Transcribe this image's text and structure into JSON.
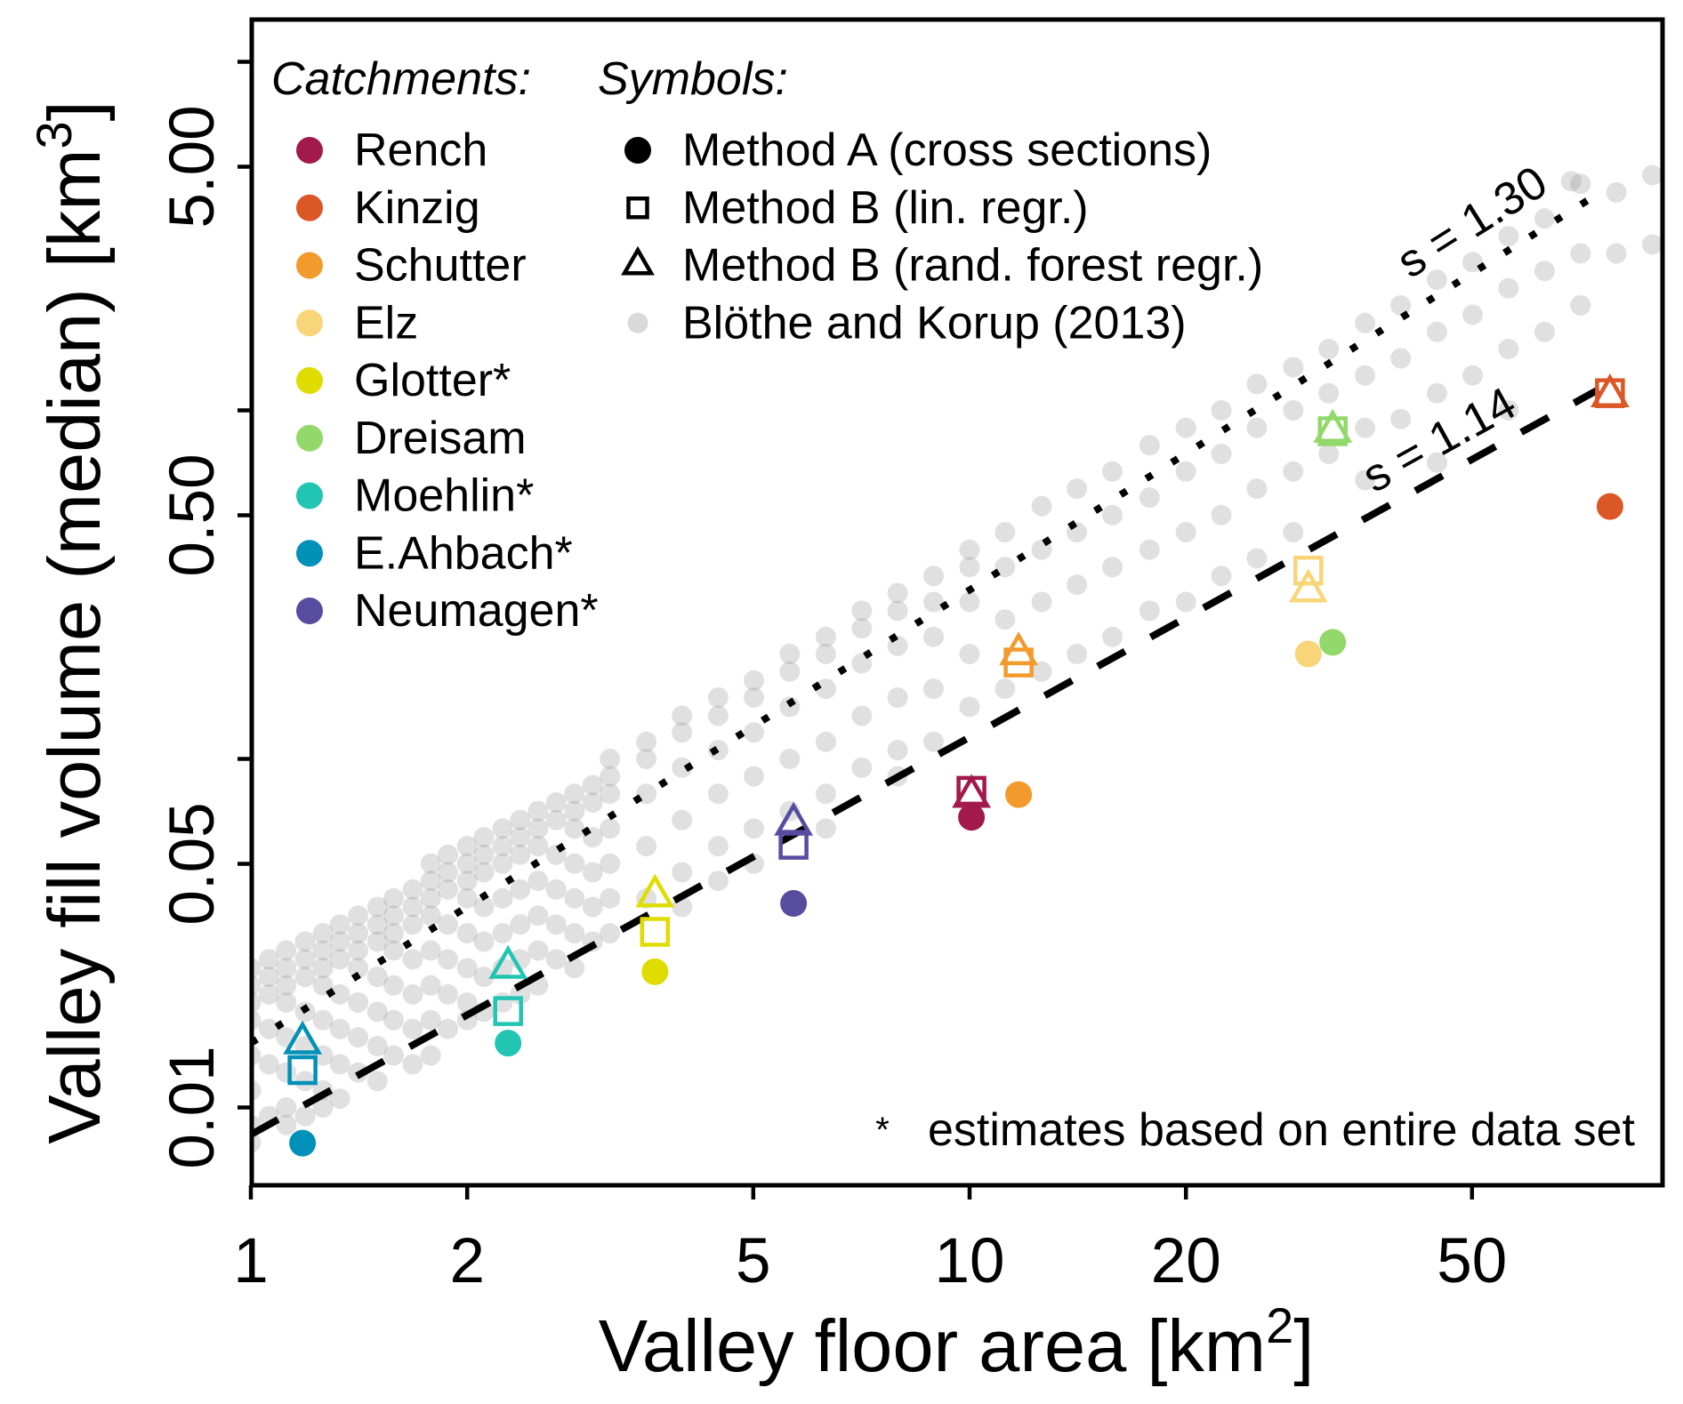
{
  "chart_data": {
    "type": "scatter",
    "title": "",
    "log_axes": true,
    "xlabel": {
      "main": "Valley floor area [km",
      "sup": "2",
      "end": "]"
    },
    "ylabel": {
      "main": "Valley fill volume (median) [km",
      "sup": "3",
      "end": "]"
    },
    "x_axis": {
      "range": [
        1,
        92
      ],
      "ticks": [
        {
          "value": 1,
          "label": "1"
        },
        {
          "value": 2,
          "label": "2"
        },
        {
          "value": 5,
          "label": "5"
        },
        {
          "value": 10,
          "label": "10"
        },
        {
          "value": 20,
          "label": "20"
        },
        {
          "value": 50,
          "label": "50"
        }
      ]
    },
    "y_axis": {
      "range": [
        0.006,
        13.2
      ],
      "ticks": [
        0.01,
        0.05,
        0.1,
        0.5,
        1,
        5,
        10
      ],
      "labeled_ticks": [
        {
          "value": 0.01,
          "label": "0.01"
        },
        {
          "value": 0.05,
          "label": "0.05"
        },
        {
          "value": 0.5,
          "label": "0.50"
        },
        {
          "value": 5,
          "label": "5.00"
        }
      ]
    },
    "grid": false,
    "legend": {
      "placement": "top-left",
      "catchments_title": "Catchments:",
      "symbols_title": "Symbols:",
      "symbols": [
        {
          "icon": "filled-circle-icon",
          "label": "Method A (cross sections)"
        },
        {
          "icon": "open-square-icon",
          "label": "Method B (lin. regr.)"
        },
        {
          "icon": "open-triangle-icon",
          "label": "Method B (rand. forest regr.)"
        },
        {
          "icon": "gray-circle-icon"
        }
      ]
    },
    "catchments": [
      {
        "label": "Rench",
        "color": "#A21A4A",
        "x": 10.06,
        "method_a": 0.068,
        "method_b_lin": 0.081,
        "method_b_rf": 0.078
      },
      {
        "label": "Kinzig",
        "color": "#DC5726",
        "x": 77.8,
        "method_a": 0.53,
        "method_b_lin": 1.12,
        "method_b_rf": 1.1
      },
      {
        "label": "Schutter",
        "color": "#F29B2C",
        "x": 11.7,
        "method_a": 0.079,
        "method_b_lin": 0.189,
        "method_b_rf": 0.2
      },
      {
        "label": "Elz",
        "color": "#F9D57A",
        "x": 29.6,
        "method_a": 0.2,
        "method_b_lin": 0.347,
        "method_b_rf": 0.303
      },
      {
        "label": "Glotter*",
        "color": "#E0DC00",
        "x": 3.65,
        "method_a": 0.0245,
        "method_b_lin": 0.0319,
        "method_b_rf": 0.0404
      },
      {
        "label": "Dreisam",
        "color": "#92D86A",
        "x": 32.0,
        "method_a": 0.216,
        "method_b_lin": 0.871,
        "method_b_rf": 0.87
      },
      {
        "label": "Moehlin*",
        "color": "#22C4B2",
        "x": 2.28,
        "method_a": 0.0153,
        "method_b_lin": 0.0189,
        "method_b_rf": 0.0252
      },
      {
        "label": "E.Ahbach*",
        "color": "#0090B8",
        "x": 1.18,
        "method_a": 0.0079,
        "method_b_lin": 0.0128,
        "method_b_rf": 0.0153
      },
      {
        "label": "Neumagen*",
        "color": "#574CA0",
        "x": 5.69,
        "method_a": 0.0385,
        "method_b_lin": 0.0567,
        "method_b_rf": 0.0649
      }
    ],
    "regression_lines": [
      {
        "label": "s = 1.30",
        "slope": 1.3,
        "intercept": 0.0153,
        "x_range": [
          1,
          75
        ]
      },
      {
        "label": "s = 1.14",
        "slope": 1.14,
        "intercept": 0.00836,
        "x_range": [
          1,
          75
        ]
      }
    ],
    "footnote": {
      "symbol": "*",
      "text": "estimates based on entire data set"
    },
    "reference_data": {
      "name": "Blöthe and Korup (2013)",
      "color": "#8C8C8C",
      "points": [
        {
          "x": 1.0,
          "y": [
            0.0251,
            0.0224,
            0.02,
            0.0178,
            0.0141,
            0.0112,
            0.00891,
            0.00794
          ]
        },
        {
          "x": 1.06,
          "y": [
            0.0266,
            0.0237,
            0.0211,
            0.0168,
            0.0133,
            0.00944
          ]
        },
        {
          "x": 1.12,
          "y": [
            0.0282,
            0.0251,
            0.0224,
            0.02,
            0.0159,
            0.0126,
            0.01,
            0.00891
          ]
        },
        {
          "x": 1.19,
          "y": [
            0.0299,
            0.0266,
            0.0237,
            0.0188,
            0.015,
            0.0119,
            0.00944
          ]
        },
        {
          "x": 1.26,
          "y": [
            0.0316,
            0.0282,
            0.0251,
            0.0224,
            0.0178,
            0.0141,
            0.0112,
            0.01
          ]
        },
        {
          "x": 1.33,
          "y": [
            0.0335,
            0.0299,
            0.0266,
            0.0211,
            0.0168,
            0.0133,
            0.0106
          ]
        },
        {
          "x": 1.41,
          "y": [
            0.0355,
            0.0316,
            0.0282,
            0.0251,
            0.02,
            0.0159,
            0.0126
          ]
        },
        {
          "x": 1.5,
          "y": [
            0.0376,
            0.0335,
            0.0299,
            0.0237,
            0.0188,
            0.015,
            0.0119
          ]
        },
        {
          "x": 1.58,
          "y": [
            0.0398,
            0.0355,
            0.0316,
            0.0282,
            0.0224,
            0.0178,
            0.0141
          ]
        },
        {
          "x": 1.68,
          "y": [
            0.0422,
            0.0376,
            0.0335,
            0.0266,
            0.0211,
            0.0168,
            0.0133
          ]
        },
        {
          "x": 1.78,
          "y": [
            0.0501,
            0.0447,
            0.0398,
            0.0355,
            0.0282,
            0.0224,
            0.0178,
            0.0141
          ]
        },
        {
          "x": 1.88,
          "y": [
            0.0531,
            0.0473,
            0.0422,
            0.0335,
            0.0266,
            0.0211,
            0.0168
          ]
        },
        {
          "x": 2.0,
          "y": [
            0.0562,
            0.0501,
            0.0447,
            0.0398,
            0.0316,
            0.0251,
            0.02,
            0.0178
          ]
        },
        {
          "x": 2.11,
          "y": [
            0.0596,
            0.0531,
            0.0473,
            0.0376,
            0.0299,
            0.0237,
            0.0188
          ]
        },
        {
          "x": 2.24,
          "y": [
            0.0631,
            0.0562,
            0.0501,
            0.0398,
            0.0316,
            0.0251,
            0.02
          ]
        },
        {
          "x": 2.37,
          "y": [
            0.0668,
            0.0596,
            0.0531,
            0.0422,
            0.0335,
            0.0266,
            0.0211
          ]
        },
        {
          "x": 2.51,
          "y": [
            0.0708,
            0.0631,
            0.0562,
            0.0447,
            0.0355,
            0.0282,
            0.0224
          ]
        },
        {
          "x": 2.66,
          "y": [
            0.075,
            0.0668,
            0.0531,
            0.0422,
            0.0335,
            0.0266
          ]
        },
        {
          "x": 2.82,
          "y": [
            0.0794,
            0.0708,
            0.0631,
            0.0501,
            0.0398,
            0.0316,
            0.0251
          ]
        },
        {
          "x": 2.99,
          "y": [
            0.0841,
            0.075,
            0.0596,
            0.0473,
            0.0376,
            0.0299
          ]
        },
        {
          "x": 3.16,
          "y": [
            0.1,
            0.0891,
            0.0794,
            0.0631,
            0.0501,
            0.0398,
            0.0316
          ]
        },
        {
          "x": 3.55,
          "y": [
            0.112,
            0.1,
            0.0794,
            0.0562,
            0.0398
          ]
        },
        {
          "x": 3.98,
          "y": [
            0.133,
            0.119,
            0.0944,
            0.0668,
            0.0473,
            0.0376
          ]
        },
        {
          "x": 4.47,
          "y": [
            0.15,
            0.133,
            0.106,
            0.0794,
            0.0562,
            0.0447
          ]
        },
        {
          "x": 5.01,
          "y": [
            0.168,
            0.15,
            0.119,
            0.0891,
            0.0631,
            0.0501
          ]
        },
        {
          "x": 5.62,
          "y": [
            0.2,
            0.178,
            0.141,
            0.1,
            0.0708
          ]
        },
        {
          "x": 6.31,
          "y": [
            0.224,
            0.2,
            0.159,
            0.112,
            0.0794,
            0.0631
          ]
        },
        {
          "x": 7.08,
          "y": [
            0.266,
            0.237,
            0.188,
            0.133,
            0.0944
          ]
        },
        {
          "x": 7.94,
          "y": [
            0.299,
            0.266,
            0.211,
            0.15,
            0.106,
            0.0891
          ]
        },
        {
          "x": 8.91,
          "y": [
            0.335,
            0.282,
            0.224,
            0.159,
            0.112
          ]
        },
        {
          "x": 10.0,
          "y": [
            0.398,
            0.355,
            0.282,
            0.2,
            0.141
          ]
        },
        {
          "x": 11.2,
          "y": [
            0.447,
            0.355,
            0.251,
            0.159
          ]
        },
        {
          "x": 12.6,
          "y": [
            0.531,
            0.398,
            0.282,
            0.178
          ]
        },
        {
          "x": 14.1,
          "y": [
            0.596,
            0.447,
            0.316,
            0.2
          ]
        },
        {
          "x": 15.8,
          "y": [
            0.668,
            0.501,
            0.355,
            0.224
          ]
        },
        {
          "x": 17.8,
          "y": [
            0.794,
            0.562,
            0.398,
            0.266
          ]
        },
        {
          "x": 20.0,
          "y": [
            0.891,
            0.668,
            0.447,
            0.282
          ]
        },
        {
          "x": 22.4,
          "y": [
            1.0,
            0.75,
            0.501,
            0.335
          ]
        },
        {
          "x": 25.1,
          "y": [
            1.19,
            0.891,
            0.596,
            0.376
          ]
        },
        {
          "x": 28.2,
          "y": [
            1.33,
            1.0,
            0.668,
            0.447
          ]
        },
        {
          "x": 31.6,
          "y": [
            1.5,
            1.12,
            0.75
          ]
        },
        {
          "x": 35.5,
          "y": [
            1.78,
            1.26,
            0.891,
            0.631
          ]
        },
        {
          "x": 39.8,
          "y": [
            2.0,
            1.41,
            0.944
          ]
        },
        {
          "x": 44.7,
          "y": [
            2.37,
            1.68,
            1.12,
            0.708
          ]
        },
        {
          "x": 50.1,
          "y": [
            2.66,
            1.88,
            1.26
          ]
        },
        {
          "x": 56.2,
          "y": [
            3.16,
            2.24,
            1.5,
            1.0
          ]
        },
        {
          "x": 63.1,
          "y": [
            3.55,
            2.51,
            1.68
          ]
        },
        {
          "x": 68.7,
          "y": [
            4.54
          ]
        },
        {
          "x": 70.8,
          "y": [
            4.47,
            2.82,
            2.0
          ]
        },
        {
          "x": 79.4,
          "y": [
            4.22,
            2.82
          ]
        },
        {
          "x": 89.1,
          "y": [
            4.73,
            2.99
          ]
        }
      ]
    }
  }
}
